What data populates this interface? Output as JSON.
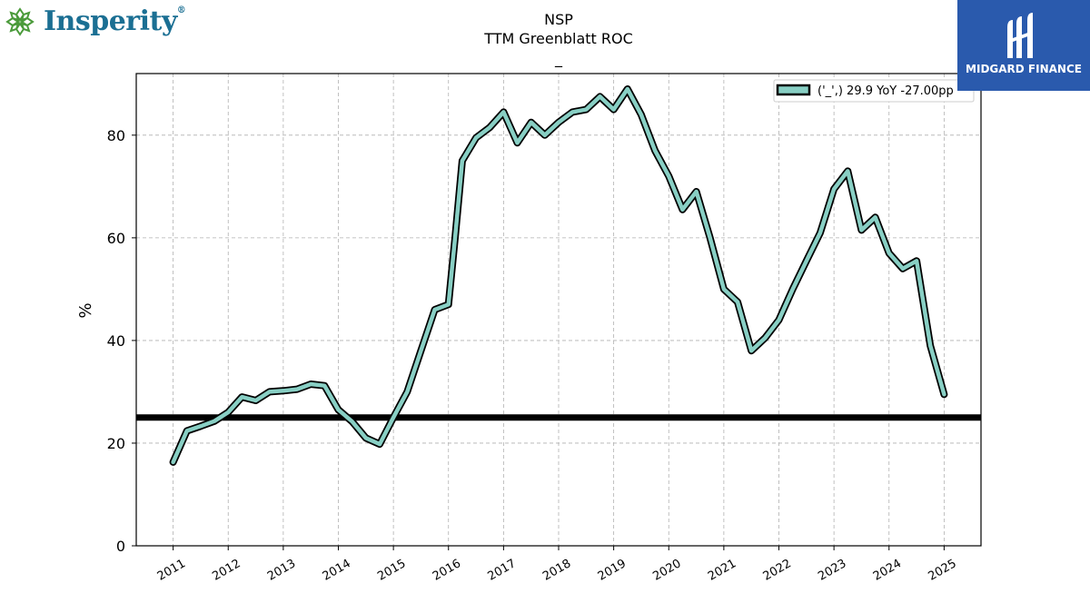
{
  "branding": {
    "left_logo_text": "Insperity",
    "left_logo_mark": "®",
    "right_logo_text": "MIDGARD FINANCE",
    "right_logo_bg": "#2a5aad"
  },
  "chart_data": {
    "type": "line",
    "title": "NSP",
    "subtitle": "TTM Greenblatt ROC",
    "subtitle2": "_",
    "xlabel": "",
    "ylabel": "%",
    "xlim": [
      2010.33,
      2025.67
    ],
    "ylim": [
      0,
      92
    ],
    "x_ticks": [
      2011,
      2012,
      2013,
      2014,
      2015,
      2016,
      2017,
      2018,
      2019,
      2020,
      2021,
      2022,
      2023,
      2024,
      2025
    ],
    "y_ticks": [
      0,
      20,
      40,
      60,
      80
    ],
    "grid": true,
    "legend_position": "top-right",
    "line_color": "#88cfc4",
    "outline_color": "#000000",
    "reference_line": {
      "y": 25,
      "color": "#000000"
    },
    "series": [
      {
        "name": "('_',) 29.9 YoY -27.00pp",
        "x": [
          2011.0,
          2011.25,
          2011.5,
          2011.75,
          2012.0,
          2012.25,
          2012.5,
          2012.75,
          2013.0,
          2013.25,
          2013.5,
          2013.75,
          2014.0,
          2014.25,
          2014.5,
          2014.75,
          2015.0,
          2015.25,
          2015.5,
          2015.75,
          2016.0,
          2016.12,
          2016.25,
          2016.5,
          2016.75,
          2017.0,
          2017.25,
          2017.5,
          2017.75,
          2018.0,
          2018.25,
          2018.5,
          2018.75,
          2019.0,
          2019.25,
          2019.5,
          2019.75,
          2020.0,
          2020.25,
          2020.5,
          2020.75,
          2021.0,
          2021.25,
          2021.5,
          2021.75,
          2022.0,
          2022.25,
          2022.5,
          2022.75,
          2023.0,
          2023.25,
          2023.5,
          2023.75,
          2024.0,
          2024.25,
          2024.5,
          2024.75,
          2025.0
        ],
        "values": [
          16.3,
          22.4,
          23.3,
          24.3,
          26.0,
          29.0,
          28.3,
          30.0,
          30.2,
          30.5,
          31.5,
          31.2,
          26.5,
          24.2,
          21.0,
          19.8,
          25.0,
          30.0,
          38.0,
          46.0,
          47.0,
          60.0,
          75.0,
          79.5,
          81.5,
          84.5,
          78.5,
          82.5,
          80.0,
          82.5,
          84.5,
          85.0,
          87.5,
          85.0,
          89.0,
          84.0,
          77.0,
          72.0,
          65.5,
          69.0,
          60.0,
          50.0,
          47.5,
          38.0,
          40.5,
          44.0,
          50.0,
          55.5,
          61.0,
          69.5,
          73.0,
          61.5,
          64.0,
          57.0,
          54.0,
          55.5,
          39.0,
          29.5
        ]
      }
    ]
  }
}
